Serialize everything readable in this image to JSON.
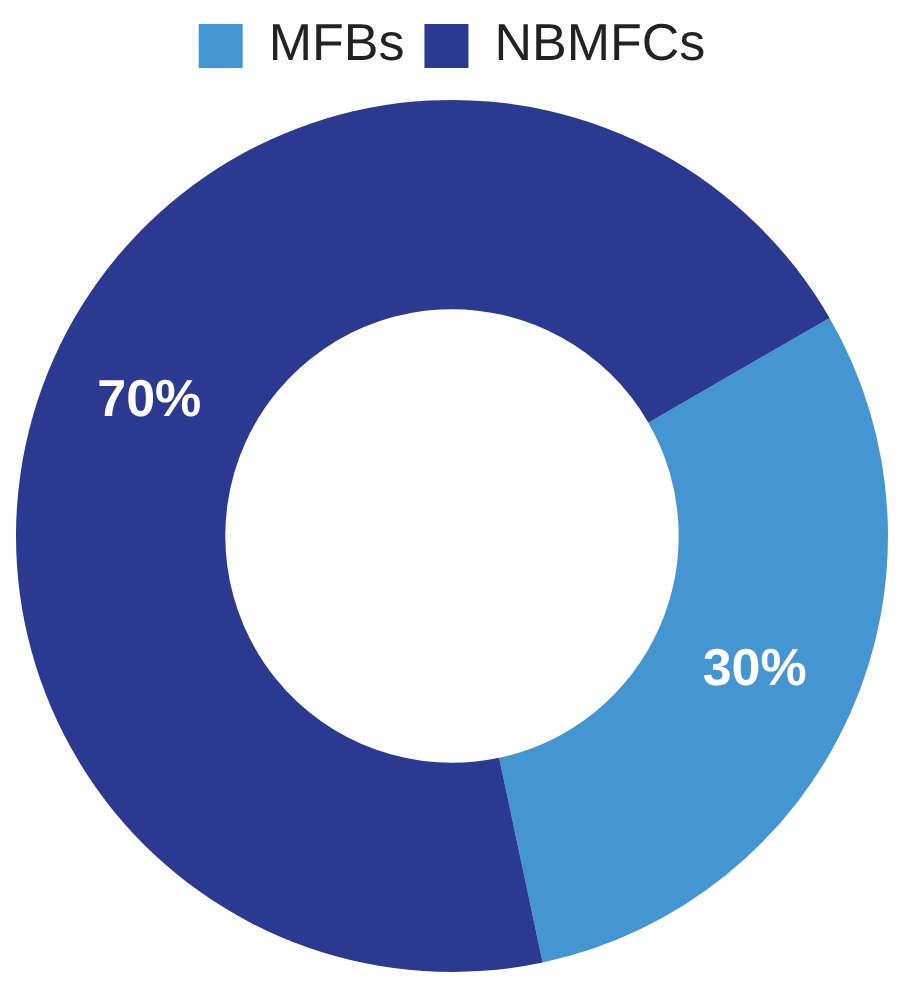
{
  "chart_data": {
    "type": "donut",
    "categories": [
      "MFBs",
      "NBMFCs"
    ],
    "values": [
      30,
      70
    ],
    "colors": [
      "#4496d2",
      "#2b3990"
    ],
    "legend": "top",
    "value_labels": [
      "30%",
      "70%"
    ]
  }
}
